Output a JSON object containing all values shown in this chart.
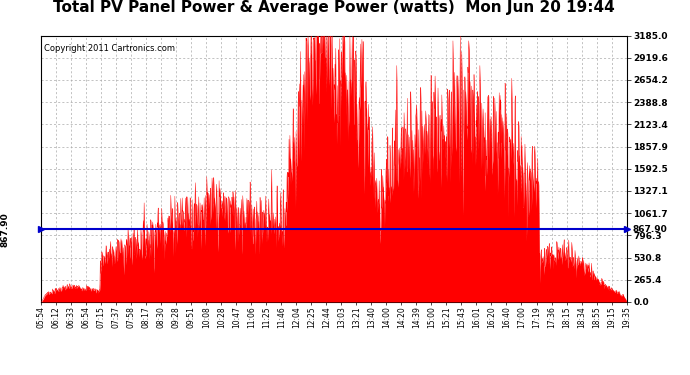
{
  "title": "Total PV Panel Power & Average Power (watts)  Mon Jun 20 19:44",
  "copyright": "Copyright 2011 Cartronics.com",
  "avg_power": 867.9,
  "y_max": 3185.0,
  "y_ticks": [
    0.0,
    265.4,
    530.8,
    796.3,
    1061.7,
    1327.1,
    1592.5,
    1857.9,
    2123.4,
    2388.8,
    2654.2,
    2919.6,
    3185.0
  ],
  "x_labels": [
    "05:54",
    "06:12",
    "06:33",
    "06:54",
    "07:15",
    "07:37",
    "07:58",
    "08:17",
    "08:30",
    "09:28",
    "09:51",
    "10:08",
    "10:28",
    "10:47",
    "11:06",
    "11:25",
    "11:46",
    "12:04",
    "12:25",
    "12:44",
    "13:03",
    "13:21",
    "13:40",
    "14:00",
    "14:20",
    "14:39",
    "15:00",
    "15:21",
    "15:43",
    "16:01",
    "16:20",
    "16:40",
    "17:00",
    "17:19",
    "17:36",
    "18:15",
    "18:34",
    "18:55",
    "19:15",
    "19:35"
  ],
  "background_color": "#ffffff",
  "plot_bg_color": "#ffffff",
  "bar_color": "#ff0000",
  "avg_line_color": "#0000cc",
  "grid_color": "#aaaaaa",
  "title_fontsize": 11,
  "copyright_fontsize": 6,
  "left_label_867": "867.90",
  "right_label_867": "867.90"
}
